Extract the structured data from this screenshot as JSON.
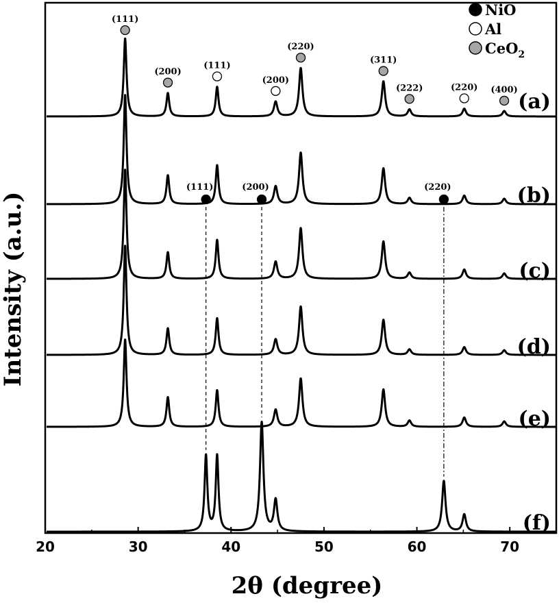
{
  "chart_data": {
    "type": "line",
    "xlabel": "2θ (degree)",
    "ylabel": "Intensity (a.u.)",
    "xlim": [
      20,
      75
    ],
    "xticks": [
      20,
      30,
      40,
      50,
      60,
      70
    ],
    "legend": {
      "placement": "top-right",
      "entries": [
        {
          "label": "NiO",
          "marker": "filled",
          "color": "#000000"
        },
        {
          "label": "Al",
          "marker": "open",
          "color": "#ffffff"
        },
        {
          "label": "CeO",
          "subscript": "2",
          "marker": "gray",
          "color": "#a6a6a6"
        }
      ]
    },
    "series": [
      {
        "name": "(a)",
        "peaks": [
          [
            28.6,
            1.0
          ],
          [
            33.2,
            0.3
          ],
          [
            38.5,
            0.38
          ],
          [
            44.8,
            0.19
          ],
          [
            47.5,
            0.62
          ],
          [
            56.4,
            0.45
          ],
          [
            59.2,
            0.09
          ],
          [
            65.1,
            0.1
          ],
          [
            69.4,
            0.07
          ]
        ]
      },
      {
        "name": "(b)",
        "peaks": [
          [
            28.6,
            1.4
          ],
          [
            33.2,
            0.37
          ],
          [
            38.5,
            0.5
          ],
          [
            44.8,
            0.23
          ],
          [
            47.5,
            0.66
          ],
          [
            56.4,
            0.46
          ],
          [
            59.2,
            0.08
          ],
          [
            65.1,
            0.11
          ],
          [
            69.4,
            0.07
          ]
        ]
      },
      {
        "name": "(c)",
        "peaks": [
          [
            28.6,
            1.4
          ],
          [
            33.2,
            0.34
          ],
          [
            38.5,
            0.5
          ],
          [
            44.8,
            0.22
          ],
          [
            47.5,
            0.65
          ],
          [
            56.4,
            0.48
          ],
          [
            59.2,
            0.08
          ],
          [
            65.1,
            0.12
          ],
          [
            69.4,
            0.07
          ]
        ]
      },
      {
        "name": "(d)",
        "peaks": [
          [
            28.6,
            1.4
          ],
          [
            33.2,
            0.34
          ],
          [
            38.5,
            0.47
          ],
          [
            44.8,
            0.2
          ],
          [
            47.5,
            0.62
          ],
          [
            56.4,
            0.45
          ],
          [
            59.2,
            0.07
          ],
          [
            65.1,
            0.1
          ],
          [
            69.4,
            0.06
          ]
        ]
      },
      {
        "name": "(e)",
        "peaks": [
          [
            28.6,
            1.12
          ],
          [
            33.2,
            0.38
          ],
          [
            38.5,
            0.47
          ],
          [
            44.8,
            0.22
          ],
          [
            47.5,
            0.62
          ],
          [
            56.4,
            0.48
          ],
          [
            59.2,
            0.08
          ],
          [
            65.1,
            0.12
          ],
          [
            69.4,
            0.07
          ]
        ]
      },
      {
        "name": "(f)",
        "peaks": [
          [
            37.3,
            0.97
          ],
          [
            38.5,
            0.97
          ],
          [
            43.3,
            1.4
          ],
          [
            44.8,
            0.4
          ],
          [
            62.9,
            0.65
          ],
          [
            65.1,
            0.22
          ]
        ]
      }
    ],
    "annotations": [
      {
        "phase": "CeO2",
        "label": "(111)",
        "x": 28.6,
        "series": "(a)"
      },
      {
        "phase": "CeO2",
        "label": "(200)",
        "x": 33.2,
        "series": "(a)"
      },
      {
        "phase": "Al",
        "label": "(111)",
        "x": 38.5,
        "series": "(a)"
      },
      {
        "phase": "Al",
        "label": "(200)",
        "x": 44.8,
        "series": "(a)"
      },
      {
        "phase": "CeO2",
        "label": "(220)",
        "x": 47.5,
        "series": "(a)"
      },
      {
        "phase": "CeO2",
        "label": "(311)",
        "x": 56.4,
        "series": "(a)"
      },
      {
        "phase": "CeO2",
        "label": "(222)",
        "x": 59.2,
        "series": "(a)"
      },
      {
        "phase": "Al",
        "label": "(220)",
        "x": 65.1,
        "series": "(a)"
      },
      {
        "phase": "CeO2",
        "label": "(400)",
        "x": 69.4,
        "series": "(a)"
      },
      {
        "phase": "NiO",
        "label": "(111)",
        "x": 37.3,
        "series": "(b)"
      },
      {
        "phase": "NiO",
        "label": "(200)",
        "x": 43.3,
        "series": "(b)"
      },
      {
        "phase": "NiO",
        "label": "(220)",
        "x": 62.9,
        "series": "(b)"
      }
    ],
    "reference_lines": [
      {
        "x": 37.3,
        "from": "(b)",
        "to": "(f)",
        "style": "dashed"
      },
      {
        "x": 43.3,
        "from": "(b)",
        "to": "(f)",
        "style": "dashed"
      },
      {
        "x": 62.9,
        "from": "(b)",
        "to": "(f)",
        "style": "dash-dot"
      }
    ],
    "grid": false
  }
}
